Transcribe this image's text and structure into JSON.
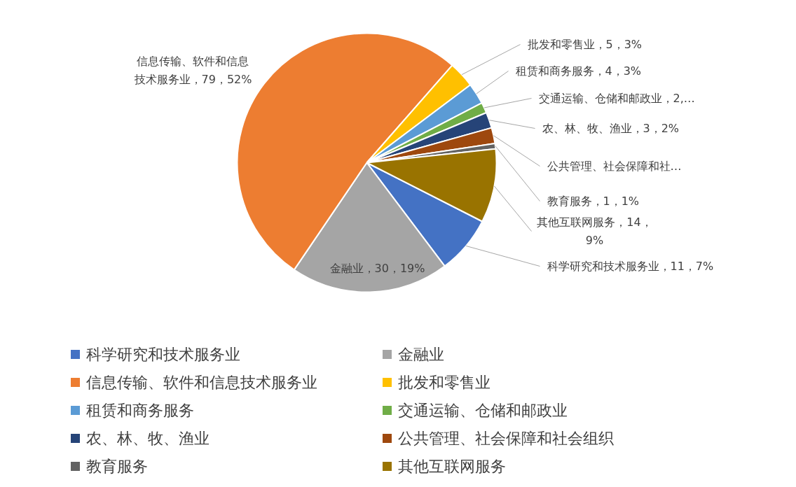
{
  "chart_data": {
    "type": "pie",
    "categories": [
      "科学研究和技术服务业",
      "金融业",
      "信息传输、软件和信息技术服务业",
      "批发和零售业",
      "租赁和商务服务",
      "交通运输、仓储和邮政业",
      "农、林、牧、渔业",
      "公共管理、社会保障和社会组织",
      "教育服务",
      "其他互联网服务"
    ],
    "values": [
      11,
      30,
      79,
      5,
      4,
      2,
      3,
      3,
      1,
      14
    ],
    "colors": [
      "#4472c4",
      "#a5a5a5",
      "#ed7d31",
      "#ffc000",
      "#5b9bd5",
      "#70ad47",
      "#264478",
      "#9e480e",
      "#636363",
      "#997300"
    ],
    "value_labels": [
      "科学研究和技术服务业，11，7%",
      "金融业，30，19%",
      "信息传输、软件和信息技术服务业，79，52%",
      "批发和零售业，5，3%",
      "租赁和商务服务，4，3%",
      "交通运输、仓储和邮政业，2,…",
      "农、林、牧、渔业，3，2%",
      "公共管理、社会保障和社…",
      "教育服务，1，1%",
      "其他互联网服务，14，9%"
    ],
    "legend": "bottom"
  }
}
